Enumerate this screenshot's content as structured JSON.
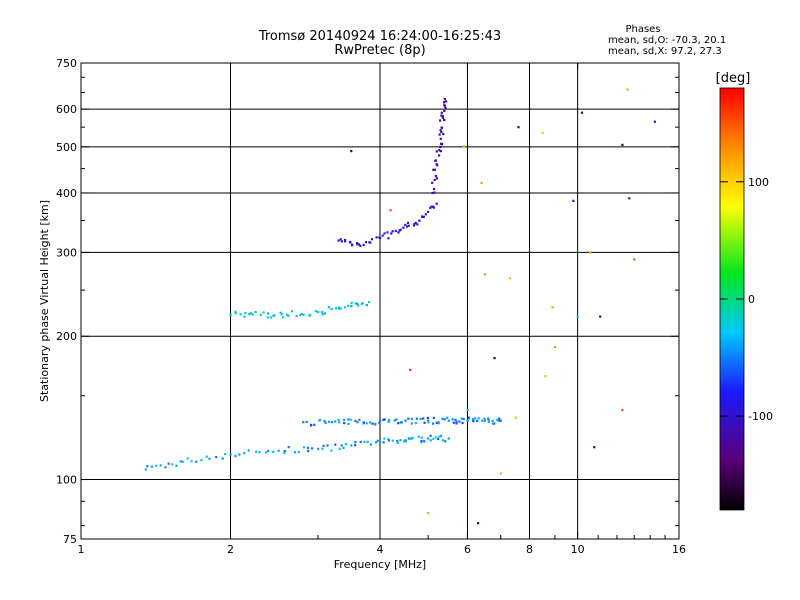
{
  "chart_data": {
    "type": "scatter",
    "title": "Tromsø 20140924 16:24:00-16:25:43",
    "subtitle": "RwPretec (8p)",
    "xlabel": "Frequency [MHz]",
    "ylabel": "Stationary phase Virtual Height [km]",
    "x_scale": "log2",
    "y_scale": "log",
    "xlim": [
      1,
      16
    ],
    "ylim": [
      75,
      750
    ],
    "xticks": [
      1,
      2,
      4,
      6,
      8,
      10,
      16
    ],
    "yticks": [
      75,
      100,
      200,
      300,
      400,
      500,
      600,
      750
    ],
    "xgrid": [
      2,
      4,
      6,
      8,
      10
    ],
    "ygrid": [
      100,
      200,
      300,
      400,
      500,
      600
    ],
    "stats": {
      "heading": "Phases",
      "line_o": "mean, sd,O: -70.3, 20.1",
      "line_x": "mean, sd,X:  97.2, 27.3"
    },
    "colorbar": {
      "label": "[deg]",
      "min": -180,
      "max": 180,
      "ticks": [
        100,
        0,
        -100
      ],
      "colormap": "rainbow: black-purple-blue-cyan-green-yellow-orange-red"
    },
    "traces": [
      {
        "description": "E-layer trace",
        "x": [
          1.35,
          1.6,
          2.0,
          2.5,
          3.0,
          3.5,
          4.0,
          4.5,
          5.0,
          5.5
        ],
        "y": [
          105,
          109,
          113,
          115,
          116,
          118,
          120,
          121,
          122,
          122
        ],
        "phase": -40
      },
      {
        "description": "Es/E2 trace",
        "x": [
          2.8,
          3.2,
          3.6,
          4.0,
          4.5,
          5.0,
          5.5,
          6.0,
          6.5,
          7.0
        ],
        "y": [
          132,
          132,
          132,
          133,
          133,
          133,
          133,
          133,
          133,
          133
        ],
        "phase": -50
      },
      {
        "description": "F-layer lower trace",
        "x": [
          3.3,
          3.6,
          4.0,
          4.4,
          4.8,
          5.2
        ],
        "y": [
          318,
          312,
          322,
          335,
          350,
          380
        ],
        "phase": -90
      },
      {
        "description": "F-layer cusp",
        "x": [
          5.1,
          5.2,
          5.3,
          5.35,
          5.4
        ],
        "y": [
          400,
          460,
          520,
          580,
          630
        ],
        "phase": -110
      },
      {
        "description": "Spread 220 km trace",
        "x": [
          2.0,
          2.3,
          2.6,
          3.0,
          3.4,
          3.8
        ],
        "y": [
          222,
          222,
          222,
          225,
          230,
          236
        ],
        "phase": -20
      }
    ],
    "scattered_points": [
      {
        "x": 3.5,
        "y": 490,
        "phase": -150
      },
      {
        "x": 4.2,
        "y": 368,
        "phase": 150
      },
      {
        "x": 5.9,
        "y": 502,
        "phase": 110
      },
      {
        "x": 6.4,
        "y": 420,
        "phase": 120
      },
      {
        "x": 7.6,
        "y": 550,
        "phase": -150
      },
      {
        "x": 8.5,
        "y": 535,
        "phase": 100
      },
      {
        "x": 9.8,
        "y": 385,
        "phase": -100
      },
      {
        "x": 10.2,
        "y": 590,
        "phase": -150
      },
      {
        "x": 10.6,
        "y": 300,
        "phase": 120
      },
      {
        "x": 12.3,
        "y": 505,
        "phase": -150
      },
      {
        "x": 12.6,
        "y": 660,
        "phase": 120
      },
      {
        "x": 12.7,
        "y": 390,
        "phase": -100
      },
      {
        "x": 13.0,
        "y": 290,
        "phase": 150
      },
      {
        "x": 14.3,
        "y": 565,
        "phase": -100
      },
      {
        "x": 6.5,
        "y": 270,
        "phase": 130
      },
      {
        "x": 7.3,
        "y": 265,
        "phase": 110
      },
      {
        "x": 8.9,
        "y": 230,
        "phase": 120
      },
      {
        "x": 10.0,
        "y": 220,
        "phase": -30
      },
      {
        "x": 11.1,
        "y": 220,
        "phase": -150
      },
      {
        "x": 8.6,
        "y": 165,
        "phase": 100
      },
      {
        "x": 9.0,
        "y": 190,
        "phase": 130
      },
      {
        "x": 5.0,
        "y": 85,
        "phase": 120
      },
      {
        "x": 6.3,
        "y": 81,
        "phase": -150
      },
      {
        "x": 7.0,
        "y": 103,
        "phase": 120
      },
      {
        "x": 12.3,
        "y": 140,
        "phase": 150
      },
      {
        "x": 10.8,
        "y": 117,
        "phase": -150
      },
      {
        "x": 6.0,
        "y": 140,
        "phase": 20
      },
      {
        "x": 7.5,
        "y": 135,
        "phase": 50
      },
      {
        "x": 4.6,
        "y": 170,
        "phase": 160
      },
      {
        "x": 6.8,
        "y": 180,
        "phase": -160
      }
    ]
  }
}
